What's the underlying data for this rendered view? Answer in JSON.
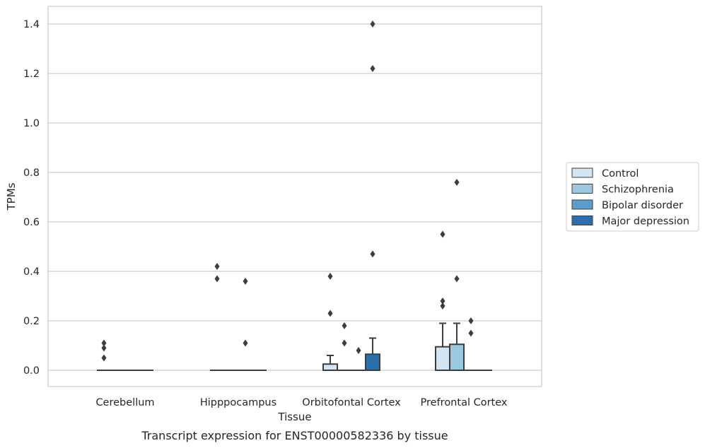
{
  "chart_data": {
    "type": "box",
    "caption": "Transcript expression for ENST00000582336 by tissue",
    "xlabel": "Tissue",
    "ylabel": "TPMs",
    "ylim": [
      -0.07,
      1.47
    ],
    "yticks": [
      "0.0",
      "0.2",
      "0.4",
      "0.6",
      "0.8",
      "1.0",
      "1.2",
      "1.4"
    ],
    "grid": true,
    "legend_position": "right",
    "categories": [
      "Cerebellum",
      "Hipppocampus",
      "Orbitofontal Cortex",
      "Prefrontal Cortex"
    ],
    "series": [
      {
        "name": "Control",
        "color": "#d3e4f3",
        "boxes": [
          {
            "q1": 0,
            "median": 0,
            "q3": 0,
            "whisker_low": 0,
            "whisker_high": 0,
            "outliers": [
              0.11,
              0.09,
              0.05
            ]
          },
          {
            "q1": 0,
            "median": 0,
            "q3": 0,
            "whisker_low": 0,
            "whisker_high": 0,
            "outliers": [
              0.42,
              0.37
            ]
          },
          {
            "q1": 0,
            "median": 0,
            "q3": 0.025,
            "whisker_low": 0,
            "whisker_high": 0.06,
            "outliers": [
              0.38,
              0.23
            ]
          },
          {
            "q1": 0,
            "median": 0,
            "q3": 0.095,
            "whisker_low": 0,
            "whisker_high": 0.19,
            "outliers": [
              0.55,
              0.28,
              0.26
            ]
          }
        ]
      },
      {
        "name": "Schizophrenia",
        "color": "#9ac8e0",
        "boxes": [
          {
            "q1": 0,
            "median": 0,
            "q3": 0,
            "whisker_low": 0,
            "whisker_high": 0,
            "outliers": []
          },
          {
            "q1": 0,
            "median": 0,
            "q3": 0,
            "whisker_low": 0,
            "whisker_high": 0,
            "outliers": []
          },
          {
            "q1": 0,
            "median": 0,
            "q3": 0,
            "whisker_low": 0,
            "whisker_high": 0,
            "outliers": [
              0.18,
              0.11
            ]
          },
          {
            "q1": 0,
            "median": 0,
            "q3": 0.105,
            "whisker_low": 0,
            "whisker_high": 0.19,
            "outliers": [
              0.76,
              0.37
            ]
          }
        ]
      },
      {
        "name": "Bipolar disorder",
        "color": "#5a9ec9",
        "boxes": [
          {
            "q1": 0,
            "median": 0,
            "q3": 0,
            "whisker_low": 0,
            "whisker_high": 0,
            "outliers": []
          },
          {
            "q1": 0,
            "median": 0,
            "q3": 0,
            "whisker_low": 0,
            "whisker_high": 0,
            "outliers": [
              0.36,
              0.11
            ]
          },
          {
            "q1": 0,
            "median": 0,
            "q3": 0,
            "whisker_low": 0,
            "whisker_high": 0,
            "outliers": [
              0.08
            ]
          },
          {
            "q1": 0,
            "median": 0,
            "q3": 0,
            "whisker_low": 0,
            "whisker_high": 0,
            "outliers": [
              0.2,
              0.15
            ]
          }
        ]
      },
      {
        "name": "Major depression",
        "color": "#2d6fad",
        "boxes": [
          {
            "q1": 0,
            "median": 0,
            "q3": 0,
            "whisker_low": 0,
            "whisker_high": 0,
            "outliers": []
          },
          {
            "q1": 0,
            "median": 0,
            "q3": 0,
            "whisker_low": 0,
            "whisker_high": 0,
            "outliers": []
          },
          {
            "q1": 0,
            "median": 0,
            "q3": 0.065,
            "whisker_low": 0,
            "whisker_high": 0.13,
            "outliers": [
              1.4,
              1.22,
              0.47
            ]
          },
          {
            "q1": 0,
            "median": 0,
            "q3": 0,
            "whisker_low": 0,
            "whisker_high": 0,
            "outliers": []
          }
        ]
      }
    ]
  }
}
